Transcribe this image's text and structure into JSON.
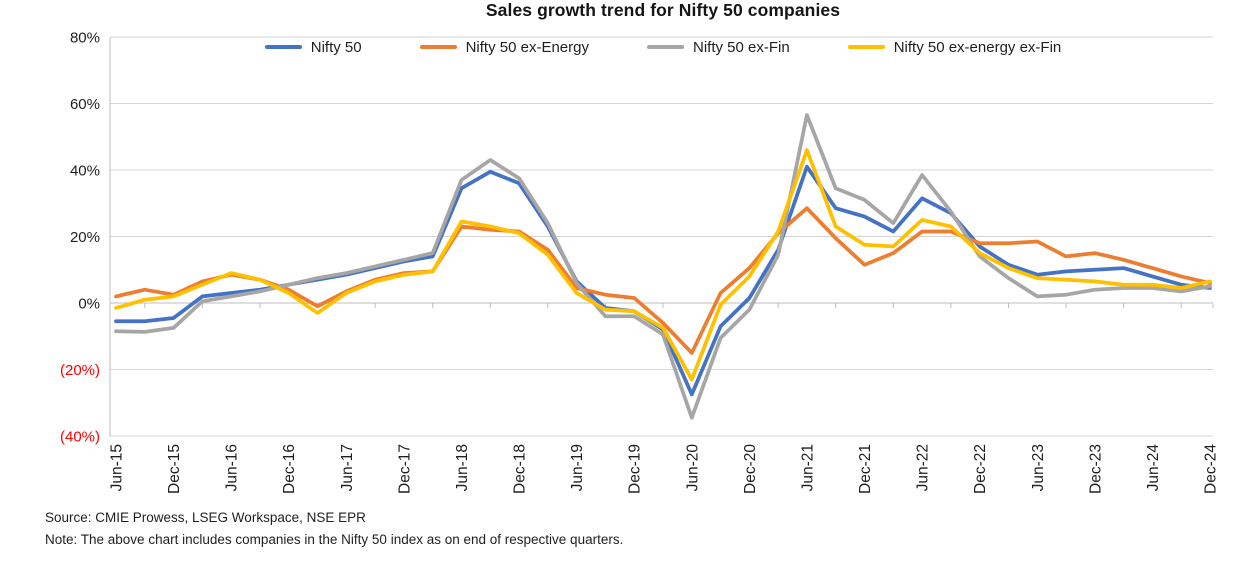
{
  "title": "Sales growth trend for Nifty 50 companies",
  "footer": {
    "source": "Source: CMIE Prowess, LSEG Workspace, NSE EPR",
    "note": "Note: The above chart includes companies in the Nifty 50 index as on end of respective quarters."
  },
  "colors": {
    "gridline": "#D6D6D6",
    "axis": "#BFBFBF",
    "tick_label": "#1f1f1f",
    "negative_tick_label": "#FF0000"
  },
  "chart_data": {
    "type": "line",
    "title": "Sales growth trend for Nifty 50 companies",
    "xlabel": "",
    "ylabel": "",
    "ylim": [
      -40,
      80
    ],
    "grid": true,
    "legend_position": "top",
    "x_tick_every": 2,
    "y_ticks": [
      {
        "value": 80,
        "label": "80%"
      },
      {
        "value": 60,
        "label": "60%"
      },
      {
        "value": 40,
        "label": "40%"
      },
      {
        "value": 20,
        "label": "20%"
      },
      {
        "value": 0,
        "label": "0%"
      },
      {
        "value": -20,
        "label": "(20%)"
      },
      {
        "value": -40,
        "label": "(40%)"
      }
    ],
    "x": [
      "Jun-15",
      "Sep-15",
      "Dec-15",
      "Mar-16",
      "Jun-16",
      "Sep-16",
      "Dec-16",
      "Mar-17",
      "Jun-17",
      "Sep-17",
      "Dec-17",
      "Mar-18",
      "Jun-18",
      "Sep-18",
      "Dec-18",
      "Mar-19",
      "Jun-19",
      "Sep-19",
      "Dec-19",
      "Mar-20",
      "Jun-20",
      "Sep-20",
      "Dec-20",
      "Mar-21",
      "Jun-21",
      "Sep-21",
      "Dec-21",
      "Mar-22",
      "Jun-22",
      "Sep-22",
      "Dec-22",
      "Mar-23",
      "Jun-23",
      "Sep-23",
      "Dec-23",
      "Mar-24",
      "Jun-24",
      "Sep-24",
      "Dec-24"
    ],
    "series": [
      {
        "name": "Nifty 50",
        "color": "#4472C4",
        "values": [
          -5.5,
          -5.5,
          -4.5,
          2,
          3,
          4,
          5.5,
          7,
          8.5,
          10.5,
          12.5,
          14,
          34.5,
          39.5,
          36,
          23,
          6.5,
          -1.5,
          -2.5,
          -8,
          -27.5,
          -7,
          1.5,
          16,
          41,
          28.5,
          26,
          21.5,
          31.5,
          27,
          17,
          11.5,
          8.5,
          9.5,
          10,
          10.5,
          8,
          5.5,
          4.5
        ]
      },
      {
        "name": "Nifty 50 ex-Energy",
        "color": "#ED7D31",
        "values": [
          2,
          4,
          2.5,
          6.5,
          8.5,
          7,
          4,
          -1,
          3.5,
          7,
          9,
          9.5,
          23,
          22,
          21.5,
          16,
          4.5,
          2.5,
          1.5,
          -6,
          -15,
          3,
          10.5,
          21,
          28.5,
          19.5,
          11.5,
          15,
          21.5,
          21.5,
          18,
          18,
          18.5,
          14,
          15,
          13,
          10.5,
          8,
          6
        ]
      },
      {
        "name": "Nifty 50 ex-Fin",
        "color": "#A6A6A6",
        "values": [
          -8.5,
          -8.7,
          -7.5,
          0.5,
          2,
          3.5,
          5.5,
          7.5,
          9,
          11,
          13,
          15,
          37,
          43,
          37.5,
          24,
          6,
          -4,
          -4,
          -9.5,
          -34.5,
          -10.5,
          -2,
          14.5,
          56.5,
          34.5,
          31,
          24,
          38.5,
          27.5,
          14,
          7.5,
          2,
          2.5,
          4,
          4.5,
          4.5,
          3.5,
          5
        ]
      },
      {
        "name": "Nifty 50 ex-energy ex-Fin",
        "color": "#FFC000",
        "values": [
          -1.5,
          1,
          2,
          5.5,
          9,
          7,
          3,
          -3,
          3,
          6.5,
          8.5,
          9.5,
          24.5,
          23,
          21,
          14.5,
          3,
          -2,
          -2.5,
          -7.5,
          -23,
          -0.5,
          8,
          21.5,
          46,
          23,
          17.5,
          17,
          25,
          23,
          15,
          10.5,
          7.5,
          7,
          6.5,
          5.5,
          5.5,
          4.5,
          6.5
        ]
      }
    ]
  }
}
